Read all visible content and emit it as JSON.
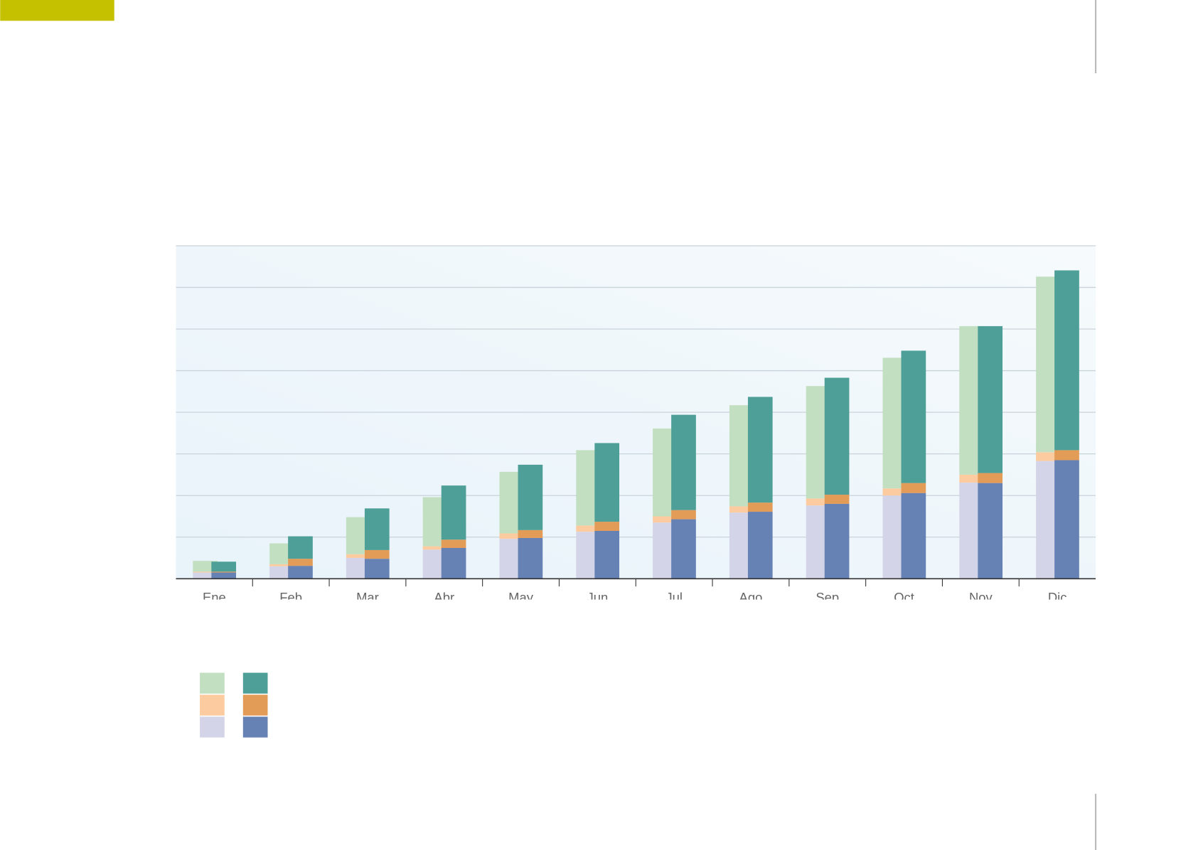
{
  "chart_data": {
    "type": "stacked-bar",
    "categories": [
      "Ene",
      "Feb",
      "Mar",
      "Abr",
      "May",
      "Jun",
      "Jul",
      "Ago",
      "Sep",
      "Oct",
      "Nov",
      "Dic"
    ],
    "series": [
      {
        "stack": 0,
        "color": "#d3d4e8",
        "values": [
          1.5,
          3.0,
          5.0,
          7.0,
          9.6,
          11.3,
          13.5,
          15.9,
          17.6,
          20.0,
          23.1,
          28.3
        ]
      },
      {
        "stack": 0,
        "color": "#fccca0",
        "values": [
          0.2,
          0.5,
          0.9,
          0.8,
          1.3,
          1.5,
          1.5,
          1.5,
          1.7,
          1.7,
          1.9,
          2.1
        ]
      },
      {
        "stack": 0,
        "color": "#c2dfc1",
        "values": [
          2.6,
          5.0,
          8.9,
          11.8,
          14.8,
          18.1,
          21.1,
          24.3,
          27.0,
          31.4,
          35.7,
          42.2
        ]
      },
      {
        "stack": 1,
        "color": "#6682b5",
        "values": [
          1.5,
          3.1,
          4.8,
          7.4,
          9.8,
          11.5,
          14.3,
          16.1,
          18.0,
          20.6,
          23.0,
          28.5
        ]
      },
      {
        "stack": 1,
        "color": "#e39b58",
        "values": [
          0.2,
          1.7,
          2.1,
          2.0,
          1.9,
          2.2,
          2.2,
          2.2,
          2.2,
          2.4,
          2.4,
          2.4
        ]
      },
      {
        "stack": 1,
        "color": "#4d9f97",
        "values": [
          2.4,
          5.4,
          10.0,
          13.0,
          15.7,
          18.9,
          22.9,
          25.4,
          28.1,
          31.8,
          35.3,
          43.2
        ]
      }
    ],
    "ylim": [
      0,
      80
    ],
    "yticks": [
      0,
      10,
      20,
      30,
      40,
      50,
      60,
      70,
      80
    ],
    "grid": true
  }
}
